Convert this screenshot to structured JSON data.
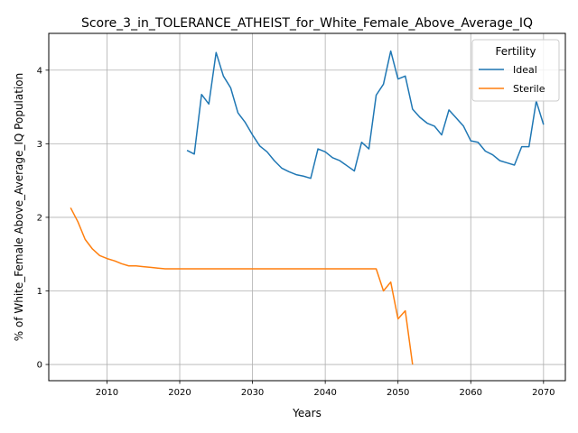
{
  "chart_data": {
    "type": "line",
    "title": "Score_3_in_TOLERANCE_ATHEIST_for_White_Female_Above_Average_IQ",
    "xlabel": "Years",
    "ylabel": "% of White_Female Above_Average_IQ Population",
    "xlim": [
      2002,
      2073
    ],
    "ylim": [
      -0.22,
      4.5
    ],
    "xticks": [
      2010,
      2020,
      2030,
      2040,
      2050,
      2060,
      2070
    ],
    "yticks": [
      0,
      1,
      2,
      3,
      4
    ],
    "grid": true,
    "legend": {
      "title": "Fertility",
      "placement": "top-right"
    },
    "series": [
      {
        "name": "Ideal",
        "color": "#1f77b4",
        "x": [
          2021,
          2022,
          2023,
          2024,
          2025,
          2026,
          2027,
          2028,
          2029,
          2030,
          2031,
          2032,
          2033,
          2034,
          2035,
          2036,
          2037,
          2038,
          2039,
          2040,
          2041,
          2042,
          2043,
          2044,
          2045,
          2046,
          2047,
          2048,
          2049,
          2050,
          2051,
          2052,
          2053,
          2054,
          2055,
          2056,
          2057,
          2058,
          2059,
          2060,
          2061,
          2062,
          2063,
          2064,
          2065,
          2066,
          2067,
          2068,
          2069,
          2070
        ],
        "y": [
          2.91,
          2.86,
          3.67,
          3.54,
          4.24,
          3.92,
          3.76,
          3.42,
          3.29,
          3.12,
          2.97,
          2.89,
          2.77,
          2.67,
          2.62,
          2.58,
          2.56,
          2.53,
          2.93,
          2.89,
          2.81,
          2.77,
          2.7,
          2.63,
          3.02,
          2.93,
          3.66,
          3.81,
          4.26,
          3.88,
          3.92,
          3.47,
          3.36,
          3.28,
          3.24,
          3.12,
          3.46,
          3.35,
          3.24,
          3.04,
          3.02,
          2.9,
          2.85,
          2.77,
          2.74,
          2.71,
          2.96,
          2.96,
          3.58,
          3.26
        ]
      },
      {
        "name": "Sterile",
        "color": "#ff7f0e",
        "x": [
          2005,
          2006,
          2007,
          2008,
          2009,
          2010,
          2011,
          2012,
          2013,
          2014,
          2015,
          2016,
          2017,
          2018,
          2019,
          2020,
          2021,
          2022,
          2023,
          2024,
          2025,
          2026,
          2027,
          2028,
          2029,
          2030,
          2031,
          2032,
          2033,
          2034,
          2035,
          2036,
          2037,
          2038,
          2039,
          2040,
          2041,
          2042,
          2043,
          2044,
          2045,
          2046,
          2047,
          2048,
          2049,
          2050,
          2051,
          2052
        ],
        "y": [
          2.13,
          1.94,
          1.7,
          1.57,
          1.48,
          1.44,
          1.41,
          1.37,
          1.34,
          1.34,
          1.33,
          1.32,
          1.31,
          1.3,
          1.3,
          1.3,
          1.3,
          1.3,
          1.3,
          1.3,
          1.3,
          1.3,
          1.3,
          1.3,
          1.3,
          1.3,
          1.3,
          1.3,
          1.3,
          1.3,
          1.3,
          1.3,
          1.3,
          1.3,
          1.3,
          1.3,
          1.3,
          1.3,
          1.3,
          1.3,
          1.3,
          1.3,
          1.3,
          1.0,
          1.12,
          0.62,
          0.73,
          0.0
        ]
      }
    ]
  }
}
